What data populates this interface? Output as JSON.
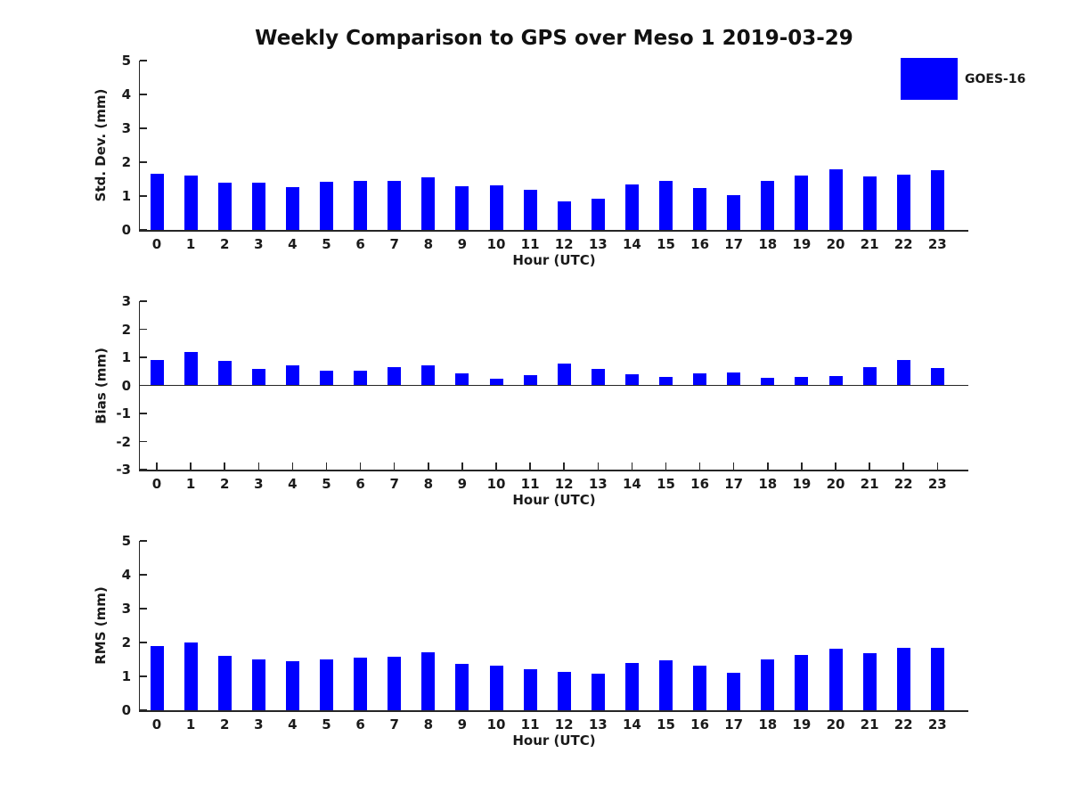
{
  "title": "Weekly Comparison to GPS over Meso 1 2019-03-29",
  "legend": {
    "label": "GOES-16",
    "swatch_color": "#0000ff"
  },
  "colors": {
    "bar": "#0000ff",
    "text": "#1a1a1a",
    "axis": "#262626",
    "background": "#ffffff"
  },
  "chart_data": [
    {
      "id": "std-dev",
      "type": "bar",
      "series_name": "GOES-16",
      "ylabel": "Std. Dev. (mm)",
      "xlabel": "Hour (UTC)",
      "ylim": [
        0,
        5
      ],
      "yticks": [
        5,
        4,
        3,
        2,
        1,
        0
      ],
      "grid": false,
      "legend_position": "outside-top-right",
      "categories": [
        "0",
        "1",
        "2",
        "3",
        "4",
        "5",
        "6",
        "7",
        "8",
        "9",
        "10",
        "11",
        "12",
        "13",
        "14",
        "15",
        "16",
        "17",
        "18",
        "19",
        "20",
        "21",
        "22",
        "23"
      ],
      "values": [
        1.66,
        1.6,
        1.39,
        1.39,
        1.26,
        1.42,
        1.44,
        1.44,
        1.54,
        1.28,
        1.32,
        1.18,
        0.84,
        0.92,
        1.34,
        1.46,
        1.25,
        1.02,
        1.46,
        1.6,
        1.78,
        1.58,
        1.63,
        1.76
      ]
    },
    {
      "id": "bias",
      "type": "bar",
      "series_name": "GOES-16",
      "ylabel": "Bias (mm)",
      "xlabel": "Hour (UTC)",
      "ylim": [
        -3,
        3
      ],
      "yticks": [
        3,
        2,
        1,
        0,
        -1,
        -2,
        -3
      ],
      "grid": false,
      "categories": [
        "0",
        "1",
        "2",
        "3",
        "4",
        "5",
        "6",
        "7",
        "8",
        "9",
        "10",
        "11",
        "12",
        "13",
        "14",
        "15",
        "16",
        "17",
        "18",
        "19",
        "20",
        "21",
        "22",
        "23"
      ],
      "values": [
        0.92,
        1.2,
        0.86,
        0.58,
        0.73,
        0.51,
        0.52,
        0.64,
        0.73,
        0.42,
        0.24,
        0.35,
        0.79,
        0.58,
        0.4,
        0.29,
        0.44,
        0.46,
        0.27,
        0.3,
        0.34,
        0.64,
        0.92,
        0.61
      ]
    },
    {
      "id": "rms",
      "type": "bar",
      "series_name": "GOES-16",
      "ylabel": "RMS (mm)",
      "xlabel": "Hour (UTC)",
      "ylim": [
        0,
        5
      ],
      "yticks": [
        5,
        4,
        3,
        2,
        1,
        0
      ],
      "grid": false,
      "categories": [
        "0",
        "1",
        "2",
        "3",
        "4",
        "5",
        "6",
        "7",
        "8",
        "9",
        "10",
        "11",
        "12",
        "13",
        "14",
        "15",
        "16",
        "17",
        "18",
        "19",
        "20",
        "21",
        "22",
        "23"
      ],
      "values": [
        1.9,
        2.0,
        1.61,
        1.51,
        1.46,
        1.5,
        1.54,
        1.58,
        1.71,
        1.36,
        1.32,
        1.22,
        1.13,
        1.08,
        1.4,
        1.47,
        1.32,
        1.11,
        1.51,
        1.63,
        1.82,
        1.69,
        1.84,
        1.84
      ]
    }
  ]
}
